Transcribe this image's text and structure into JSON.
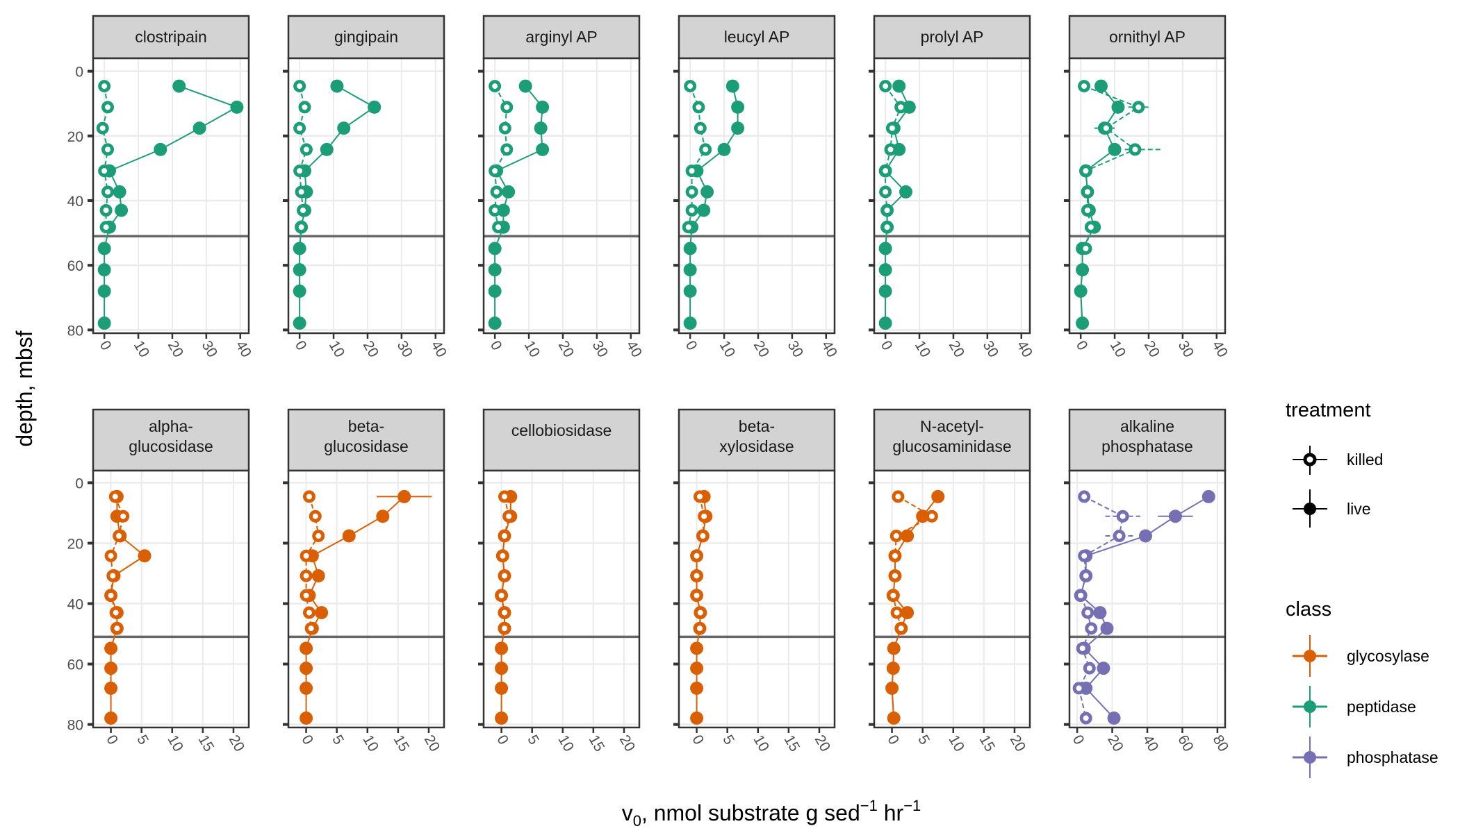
{
  "chart_data": {
    "type": "scatter",
    "subtype": "faceted depth profile (points connected by lines, with x error bars)",
    "xlabel": "v0, nmol substrate g sed-1 hr-1",
    "xlabel_parts": {
      "main": "v",
      "sub": "0",
      "rest": ", nmol substrate g sed",
      "sup1": "−1",
      "mid": " hr",
      "sup2": "−1"
    },
    "ylabel": "depth, mbsf",
    "y_reversed": true,
    "ylim": [
      81,
      -4
    ],
    "yticks": [
      0,
      20,
      40,
      60,
      80
    ],
    "reference_line_depth": 51,
    "grid": true,
    "depths": [
      4.6,
      11.1,
      17.6,
      24.2,
      30.8,
      37.3,
      43.0,
      48.2,
      54.8,
      61.4,
      68.0,
      77.9
    ],
    "legend": {
      "placement": "right",
      "treatment_title": "treatment",
      "treatment": [
        "killed",
        "live"
      ],
      "class_title": "class",
      "class": [
        {
          "name": "glycosylase",
          "color": "#D95F02"
        },
        {
          "name": "peptidase",
          "color": "#1B9E77"
        },
        {
          "name": "phosphatase",
          "color": "#7570B3"
        }
      ]
    },
    "panels": [
      {
        "label": [
          "clostripain"
        ],
        "class": "peptidase",
        "xticks": [
          0,
          10,
          20,
          30,
          40
        ],
        "xlim": [
          -3.3,
          42.5
        ],
        "live": [
          22,
          39,
          28,
          16.5,
          1.5,
          4.5,
          5,
          1.5,
          0,
          0,
          0,
          0
        ],
        "killed": [
          0,
          1,
          -0.5,
          1,
          0,
          1,
          0.5,
          0.5
        ]
      },
      {
        "label": [
          "gingipain"
        ],
        "class": "peptidase",
        "xticks": [
          0,
          10,
          20,
          30,
          40
        ],
        "xlim": [
          -3.3,
          42.5
        ],
        "live": [
          11,
          22,
          13,
          8,
          1.5,
          2,
          1.5,
          0.5,
          0,
          0,
          0,
          0
        ],
        "killed": [
          0,
          1.5,
          0,
          2,
          0,
          0.5,
          1,
          0.5
        ]
      },
      {
        "label": [
          "arginyl AP"
        ],
        "class": "peptidase",
        "xticks": [
          0,
          10,
          20,
          30,
          40
        ],
        "xlim": [
          -3.3,
          42.5
        ],
        "live": [
          9,
          14,
          13.5,
          14,
          0.5,
          4,
          2.5,
          2.5,
          0,
          0,
          0,
          0
        ],
        "killed": [
          0,
          3.5,
          3,
          3.5,
          0,
          0.5,
          0,
          1
        ]
      },
      {
        "label": [
          "leucyl AP"
        ],
        "class": "peptidase",
        "xticks": [
          0,
          10,
          20,
          30,
          40
        ],
        "xlim": [
          -3.3,
          42.5
        ],
        "live": [
          12.5,
          14,
          14,
          10,
          2,
          5,
          4,
          0.5,
          0,
          0,
          0,
          0
        ],
        "killed": [
          0,
          2.5,
          3,
          4.5,
          0.5,
          0.5,
          0.5,
          -0.5
        ]
      },
      {
        "label": [
          "prolyl AP"
        ],
        "class": "peptidase",
        "xticks": [
          0,
          10,
          20,
          30,
          40
        ],
        "xlim": [
          -3.3,
          42.5
        ],
        "live": [
          4,
          7,
          2.5,
          4,
          0,
          6,
          0.5,
          0.5,
          0,
          0,
          0,
          0
        ],
        "killed": [
          0,
          4.5,
          2,
          1.5,
          0,
          0,
          0.5,
          0.5
        ]
      },
      {
        "label": [
          "ornithyl AP"
        ],
        "class": "peptidase",
        "xticks": [
          0,
          10,
          20,
          30,
          40
        ],
        "xlim": [
          -3.3,
          42.5
        ],
        "live": [
          6,
          11,
          7,
          10,
          1.5,
          2,
          2.5,
          4,
          0.5,
          0.5,
          0,
          0.5
        ],
        "killed": [
          1,
          17,
          7.5,
          16,
          1.5,
          2,
          2,
          3,
          1.5
        ],
        "killed_err": [
          [
            1,
            14,
            20
          ],
          [
            3,
            13,
            24
          ]
        ],
        "live_err": [
          [
            2,
            4,
            10
          ]
        ]
      },
      {
        "label": [
          "alpha-",
          "glucosidase"
        ],
        "class": "glycosylase",
        "xticks": [
          0,
          5,
          10,
          15,
          20
        ],
        "xlim": [
          -2.9,
          22.5
        ],
        "live": [
          1,
          1,
          1.5,
          5.5,
          0.5,
          0,
          1,
          1,
          0,
          0,
          0,
          0
        ],
        "killed": [
          0.7,
          2,
          1.3,
          0,
          0.3,
          0,
          0.8,
          1
        ]
      },
      {
        "label": [
          "beta-",
          "glucosidase"
        ],
        "class": "glycosylase",
        "xticks": [
          0,
          5,
          10,
          15,
          20
        ],
        "xlim": [
          -2.9,
          22.5
        ],
        "live": [
          16,
          12.5,
          7,
          1,
          2,
          0.5,
          2.5,
          1,
          0,
          0,
          0,
          0
        ],
        "killed": [
          0.5,
          1.5,
          2,
          0,
          0,
          0,
          0.5,
          0.8
        ],
        "live_err": [
          [
            0,
            11.5,
            20.5
          ]
        ]
      },
      {
        "label": [
          "cellobiosidase"
        ],
        "class": "glycosylase",
        "xticks": [
          0,
          5,
          10,
          15,
          20
        ],
        "xlim": [
          -2.9,
          22.5
        ],
        "live": [
          1.5,
          1.5,
          0.5,
          0.2,
          0.5,
          0,
          0.5,
          0.5,
          0,
          0,
          0,
          0
        ],
        "killed": [
          0.5,
          1.2,
          0.5,
          0.2,
          0.5,
          0,
          0.5,
          0.5
        ]
      },
      {
        "label": [
          "beta-",
          "xylosidase"
        ],
        "class": "glycosylase",
        "xticks": [
          0,
          5,
          10,
          15,
          20
        ],
        "xlim": [
          -2.9,
          22.5
        ],
        "live": [
          1.2,
          1.5,
          1,
          0,
          0,
          0,
          0.6,
          0.5,
          0,
          0,
          0,
          0
        ],
        "killed": [
          0.5,
          1.2,
          1,
          0,
          0,
          0,
          0.6,
          0.5
        ]
      },
      {
        "label": [
          "N-acetyl-",
          "glucosaminidase"
        ],
        "class": "glycosylase",
        "xticks": [
          0,
          5,
          10,
          15,
          20
        ],
        "xlim": [
          -2.9,
          22.5
        ],
        "live": [
          7.5,
          5,
          2.5,
          0.5,
          0.5,
          0.2,
          2.5,
          1.5,
          0.3,
          0.2,
          0,
          0.3
        ],
        "killed": [
          1,
          6.5,
          0.7,
          0.5,
          0.5,
          0.2,
          0.8,
          1.5
        ]
      },
      {
        "label": [
          "alkaline",
          "phosphatase"
        ],
        "class": "phosphatase",
        "xticks": [
          0,
          20,
          40,
          60,
          80
        ],
        "xlim": [
          -4.4,
          84.4
        ],
        "live": [
          75,
          56,
          39,
          5,
          5,
          2,
          13,
          17,
          4,
          15,
          5,
          21
        ],
        "killed": [
          4,
          26,
          24,
          4,
          5,
          2,
          6,
          8,
          3,
          7,
          1,
          5
        ],
        "live_err": [
          [
            1,
            46,
            66
          ]
        ],
        "killed_err": [
          [
            1,
            16,
            36
          ],
          [
            2,
            16,
            32
          ]
        ]
      }
    ]
  }
}
